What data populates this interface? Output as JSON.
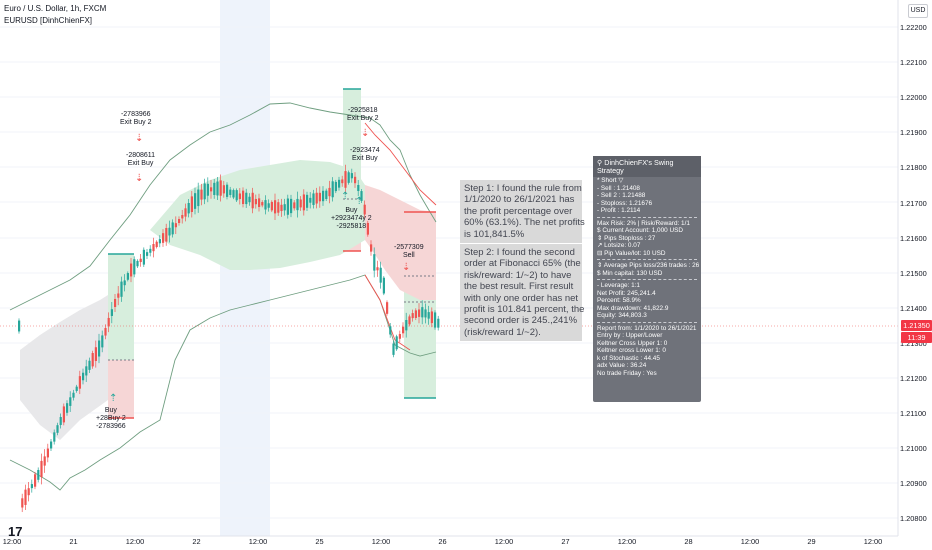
{
  "header": {
    "title": "Euro / U.S. Dollar, 1h, FXCM",
    "indicator": "EURUSD [DinhChienFX]"
  },
  "currency_badge": "USD",
  "price_axis": {
    "ticks": [
      "1.22200",
      "1.22100",
      "1.22000",
      "1.21900",
      "1.21800",
      "1.21700",
      "1.21600",
      "1.21500",
      "1.21400",
      "1.21300",
      "1.21200",
      "1.21100",
      "1.21000",
      "1.20900",
      "1.20800"
    ]
  },
  "last_price": {
    "value": "1.21350",
    "countdown": "11:39",
    "color": "#f23645"
  },
  "time_axis": {
    "ticks": [
      "12:00",
      "21",
      "12:00",
      "22",
      "12:00",
      "25",
      "12:00",
      "26",
      "12:00",
      "27",
      "12:00",
      "28",
      "12:00",
      "29",
      "12:00"
    ]
  },
  "trade_labels": {
    "exit_buy_2_a": "-2783966\nExit Buy 2",
    "exit_buy_a": "-2808611\nExit Buy",
    "buy_a": "Buy\n+28Buy 2\n-2783966",
    "exit_buy_2_b": "-2925818\nExit Buy 2",
    "exit_buy_b": "-2923474\nExit Buy",
    "buy_b": "Buy\n+2923474y 2\n-2925818",
    "sell": "-2577309\nSell"
  },
  "notes": {
    "step1": "Step 1: I found the rule from\n1/1/2020 to 26/1/2021 has\nthe profit percentage over\n60% (63.1%). The net profits\nis 101,841.5%",
    "step2": "Step 2: I found the second\norder at Fibonacci 65% (the\nrisk/reward: 1/~2) to have\nthe best result. First result\nwith only one order has net\nprofit is 101.841 percent, the\nsecond order is 245.,241%\n(risk/reward 1/~2)."
  },
  "panel": {
    "title": "DinhChienFX's Swing Strategy",
    "order": [
      "* Short ▽",
      "- Sell   : 1.21408",
      "- Sell 2 : 1.21488",
      "- Stoploss: 1.21676",
      "- Profit  : 1.2114"
    ],
    "risk": [
      "Max Risk: 2% | Risk/Reward: 1/1",
      "$ Current Account: 1,000 USD",
      "⇕ Pips Stoploss : 27",
      "↗ Lotsize: 0.07",
      "⊟ Pip Value/lot: 10 USD"
    ],
    "pips": [
      "⇕ Average Pips loss/236 trades : 26",
      "$ Min capital: 130 USD"
    ],
    "stats": [
      "- Leverage: 1:1",
      "Net Profit: 245,241.4",
      "Percent: 58.9%",
      "Max drawdown: 41,822.9",
      "Equity: 344,803.3"
    ],
    "report": [
      "Report from: 1/1/2020 to 26/1/2021",
      "Entry by : Upper/Lower",
      "Keltner Cross Upper 1: 0",
      "Keltner cross Lower 1: 0",
      "k of Stochastic : 44.45",
      "adx Value : 36.24",
      "No trade Friday : Yes"
    ]
  },
  "colors": {
    "up": "#26a69a",
    "down": "#ef5350",
    "band": "#6f9e80"
  }
}
